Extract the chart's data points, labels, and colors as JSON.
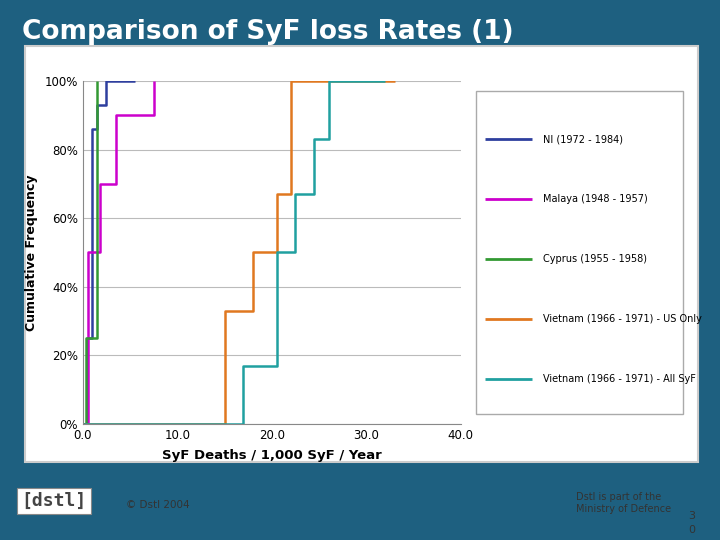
{
  "title": "Comparison of SyF loss Rates (1)",
  "title_color": "#ffffff",
  "bg_color": "#1e6080",
  "chart_bg": "#ffffff",
  "panel_bg": "#ffffff",
  "xlabel": "SyF Deaths / 1,000 SyF / Year",
  "ylabel": "Cumulative Frequency",
  "xlim": [
    0.0,
    40.0
  ],
  "ylim": [
    0.0,
    1.0
  ],
  "xticks": [
    0.0,
    10.0,
    20.0,
    30.0,
    40.0
  ],
  "yticks": [
    0.0,
    0.2,
    0.4,
    0.6,
    0.8,
    1.0
  ],
  "ytick_labels": [
    "0%",
    "20%",
    "40%",
    "60%",
    "80%",
    "100%"
  ],
  "series": [
    {
      "label": "NI (1972 - 1984)",
      "color": "#2e3f9e",
      "x": [
        0.0,
        0.4,
        0.4,
        1.0,
        1.0,
        1.5,
        1.5,
        2.5,
        2.5,
        5.5,
        5.5
      ],
      "y": [
        0.0,
        0.0,
        0.25,
        0.25,
        0.86,
        0.86,
        0.93,
        0.93,
        1.0,
        1.0,
        1.0
      ]
    },
    {
      "label": "Malaya (1948 - 1957)",
      "color": "#cc00cc",
      "x": [
        0.0,
        0.5,
        0.5,
        1.8,
        1.8,
        3.5,
        3.5,
        7.5,
        7.5
      ],
      "y": [
        0.0,
        0.0,
        0.5,
        0.5,
        0.7,
        0.7,
        0.9,
        0.9,
        1.0
      ]
    },
    {
      "label": "Cyprus (1955 - 1958)",
      "color": "#339933",
      "x": [
        0.0,
        0.3,
        0.3,
        1.5,
        1.5
      ],
      "y": [
        0.0,
        0.0,
        0.25,
        0.25,
        1.0
      ]
    },
    {
      "label": "Vietnam (1966 - 1971) - US Only",
      "color": "#e07820",
      "x": [
        0.0,
        15.0,
        15.0,
        18.0,
        18.0,
        20.5,
        20.5,
        22.0,
        22.0,
        27.0,
        27.0,
        30.0,
        30.0,
        33.0,
        33.0
      ],
      "y": [
        0.0,
        0.0,
        0.33,
        0.33,
        0.5,
        0.5,
        0.67,
        0.67,
        1.0,
        1.0,
        1.0,
        1.0,
        1.0,
        1.0,
        1.0
      ]
    },
    {
      "label": "Vietnam (1966 - 1971) - All SyF",
      "color": "#20a0a0",
      "x": [
        0.0,
        17.0,
        17.0,
        20.5,
        20.5,
        22.5,
        22.5,
        24.5,
        24.5,
        26.0,
        26.0,
        32.0,
        32.0
      ],
      "y": [
        0.0,
        0.0,
        0.17,
        0.17,
        0.5,
        0.5,
        0.67,
        0.67,
        0.83,
        0.83,
        1.0,
        1.0,
        1.0
      ]
    }
  ],
  "footer_text": "© Dstl 2004",
  "page_num": "3\n0",
  "dstl_text": "Dstl is part of the\nMinistry of Defence"
}
